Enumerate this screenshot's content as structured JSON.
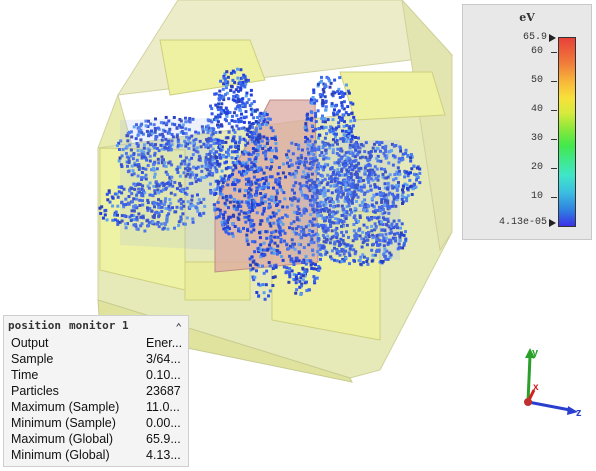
{
  "legend": {
    "unit": "eV",
    "max_label": "65.9",
    "min_label": "4.13e-05",
    "ticks": [
      "60",
      "50",
      "40",
      "30",
      "20",
      "10"
    ],
    "colors": {
      "low": "#3b30e8",
      "high": "#e8403a"
    }
  },
  "info_panel": {
    "title_word1": "position",
    "title_word2": "monitor 1",
    "collapse_icon": "chevron-up-icon",
    "rows": [
      {
        "label": "Output",
        "value": "Ener..."
      },
      {
        "label": "Sample",
        "value": "3/64..."
      },
      {
        "label": "Time",
        "value": "0.10..."
      },
      {
        "label": "Particles",
        "value": "23687"
      },
      {
        "label": "Maximum (Sample)",
        "value": "11.0..."
      },
      {
        "label": "Minimum (Sample)",
        "value": "0.00..."
      },
      {
        "label": "Maximum (Global)",
        "value": "65.9..."
      },
      {
        "label": "Minimum (Global)",
        "value": "4.13..."
      }
    ]
  },
  "axes": {
    "y": "y",
    "x": "x",
    "z": "z"
  },
  "colors": {
    "box_fill": "#e6e9b6",
    "block_fill": "#ecf0a0",
    "center_fill": "#d9a69f",
    "particle": "#2f4fe0"
  }
}
